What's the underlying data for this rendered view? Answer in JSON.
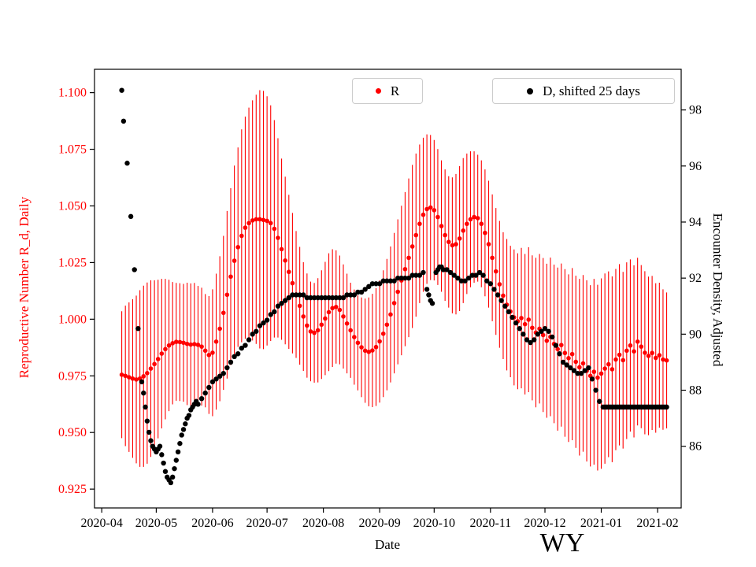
{
  "figure": {
    "title": "WY",
    "xlabel": "Date",
    "ylabel_left": "Reproductive Number R_d, Daily",
    "ylabel_right": "Encounter Density, Adjusted",
    "colors": {
      "r_series": "#ff0000",
      "d_series": "#000000",
      "axis": "#000000",
      "legend_border": "#cccccc"
    }
  },
  "chart_data": {
    "type": "scatter",
    "title": "WY",
    "xlabel": "Date",
    "ylabel_left": "Reproductive Number R_d, Daily",
    "ylabel_right": "Encounter Density, Adjusted",
    "x_unit": "days since 2020-04-01",
    "xlim": [
      -4,
      319
    ],
    "ylim_left": [
      0.9167,
      1.1103
    ],
    "ylim_right": [
      83.8,
      99.45
    ],
    "grid": false,
    "legend_position": "top",
    "x_ticks": {
      "labels": [
        "2020-04",
        "2020-05",
        "2020-06",
        "2020-07",
        "2020-08",
        "2020-09",
        "2020-10",
        "2020-11",
        "2020-12",
        "2021-01",
        "2021-02"
      ],
      "days": [
        0,
        30,
        61,
        91,
        122,
        153,
        183,
        214,
        244,
        275,
        306
      ]
    },
    "y_ticks_left": [
      0.925,
      0.95,
      0.975,
      1.0,
      1.025,
      1.05,
      1.075,
      1.1
    ],
    "y_ticks_right": [
      86,
      88,
      90,
      92,
      94,
      96,
      98
    ],
    "series": [
      {
        "name": "R",
        "axis": "left",
        "color": "#ff0000",
        "marker": "circle",
        "has_error_bars": true,
        "days": [
          11,
          13,
          15,
          17,
          19,
          21,
          23,
          25,
          27,
          29,
          31,
          33,
          35,
          37,
          39,
          41,
          43,
          45,
          47,
          49,
          51,
          53,
          55,
          57,
          59,
          61,
          63,
          65,
          67,
          69,
          71,
          73,
          75,
          77,
          79,
          81,
          83,
          85,
          87,
          89,
          91,
          93,
          95,
          97,
          99,
          101,
          103,
          105,
          107,
          109,
          111,
          113,
          115,
          117,
          119,
          121,
          123,
          125,
          127,
          129,
          131,
          133,
          135,
          137,
          139,
          141,
          143,
          145,
          147,
          149,
          151,
          153,
          155,
          157,
          159,
          161,
          163,
          165,
          167,
          169,
          171,
          173,
          175,
          177,
          179,
          181,
          183,
          185,
          187,
          189,
          191,
          193,
          195,
          197,
          199,
          201,
          203,
          205,
          207,
          209,
          211,
          213,
          215,
          217,
          219,
          221,
          223,
          225,
          227,
          229,
          231,
          233,
          235,
          237,
          239,
          241,
          243,
          245,
          247,
          249,
          251,
          253,
          255,
          257,
          259,
          261,
          263,
          265,
          267,
          269,
          271,
          273,
          275,
          277,
          279,
          281,
          283,
          285,
          287,
          289,
          291,
          293,
          295,
          297,
          299,
          301,
          303,
          305,
          307,
          309,
          311
        ],
        "values": [
          0.9755,
          0.975,
          0.9744,
          0.9738,
          0.9734,
          0.9738,
          0.9748,
          0.9762,
          0.9782,
          0.9802,
          0.9824,
          0.9848,
          0.9868,
          0.9884,
          0.9894,
          0.99,
          0.9899,
          0.9896,
          0.9891,
          0.9888,
          0.989,
          0.9887,
          0.9879,
          0.9861,
          0.9842,
          0.9852,
          0.9901,
          0.9958,
          1.0028,
          1.0108,
          1.0188,
          1.0258,
          1.0318,
          1.0368,
          1.0404,
          1.0424,
          1.0436,
          1.0441,
          1.0441,
          1.0438,
          1.0434,
          1.0424,
          1.0399,
          1.0359,
          1.0309,
          1.0259,
          1.0209,
          1.0159,
          1.0109,
          1.0059,
          1.0012,
          0.9972,
          0.9946,
          0.994,
          0.9951,
          0.9976,
          1.0003,
          1.0031,
          1.0049,
          1.0054,
          1.0041,
          1.0012,
          0.9981,
          0.9951,
          0.9921,
          0.9896,
          0.9876,
          0.9861,
          0.9856,
          0.9862,
          0.9877,
          0.9902,
          0.9936,
          0.9976,
          1.0021,
          1.0071,
          1.0121,
          1.0171,
          1.0221,
          1.0271,
          1.0321,
          1.0371,
          1.0421,
          1.0461,
          1.0486,
          1.0493,
          1.0481,
          1.0451,
          1.0411,
          1.0371,
          1.0341,
          1.0326,
          1.0331,
          1.0356,
          1.0391,
          1.0421,
          1.0441,
          1.0451,
          1.0446,
          1.0421,
          1.0381,
          1.0331,
          1.0271,
          1.0211,
          1.0154,
          1.0104,
          1.0064,
          1.0034,
          1.0008,
          0.9991,
          1.0005,
          0.9978,
          0.9998,
          0.9962,
          0.9941,
          0.9958,
          0.993,
          0.9905,
          0.9922,
          0.9891,
          0.9868,
          0.9886,
          0.9851,
          0.9828,
          0.9846,
          0.9812,
          0.9788,
          0.9805,
          0.9772,
          0.975,
          0.9768,
          0.9742,
          0.976,
          0.9782,
          0.9801,
          0.9779,
          0.9822,
          0.9843,
          0.9819,
          0.9861,
          0.9884,
          0.9858,
          0.9901,
          0.9879,
          0.9852,
          0.9838,
          0.9851,
          0.9829,
          0.9841,
          0.9822,
          0.9818
        ],
        "errors": [
          0.028,
          0.031,
          0.033,
          0.035,
          0.037,
          0.039,
          0.04,
          0.04,
          0.039,
          0.037,
          0.035,
          0.033,
          0.031,
          0.029,
          0.027,
          0.026,
          0.026,
          0.026,
          0.027,
          0.027,
          0.027,
          0.026,
          0.026,
          0.025,
          0.026,
          0.028,
          0.03,
          0.032,
          0.034,
          0.037,
          0.039,
          0.042,
          0.044,
          0.047,
          0.049,
          0.051,
          0.053,
          0.055,
          0.057,
          0.057,
          0.055,
          0.052,
          0.048,
          0.044,
          0.04,
          0.037,
          0.034,
          0.031,
          0.028,
          0.026,
          0.024,
          0.023,
          0.022,
          0.022,
          0.023,
          0.024,
          0.025,
          0.026,
          0.026,
          0.025,
          0.024,
          0.023,
          0.022,
          0.021,
          0.021,
          0.021,
          0.022,
          0.023,
          0.024,
          0.025,
          0.026,
          0.027,
          0.028,
          0.029,
          0.03,
          0.031,
          0.032,
          0.033,
          0.034,
          0.035,
          0.036,
          0.036,
          0.035,
          0.034,
          0.033,
          0.032,
          0.031,
          0.03,
          0.029,
          0.029,
          0.029,
          0.03,
          0.031,
          0.032,
          0.032,
          0.031,
          0.03,
          0.029,
          0.028,
          0.028,
          0.028,
          0.028,
          0.028,
          0.028,
          0.028,
          0.028,
          0.029,
          0.029,
          0.03,
          0.03,
          0.031,
          0.031,
          0.032,
          0.032,
          0.033,
          0.033,
          0.034,
          0.034,
          0.035,
          0.035,
          0.036,
          0.036,
          0.037,
          0.037,
          0.038,
          0.038,
          0.039,
          0.039,
          0.04,
          0.04,
          0.041,
          0.041,
          0.042,
          0.042,
          0.041,
          0.041,
          0.04,
          0.04,
          0.039,
          0.039,
          0.038,
          0.038,
          0.037,
          0.036,
          0.036,
          0.035,
          0.034,
          0.033,
          0.032,
          0.031,
          0.03
        ]
      },
      {
        "name": "D, shifted 25 days",
        "axis": "right",
        "color": "#000000",
        "marker": "circle",
        "has_error_bars": false,
        "days": [
          11,
          12,
          14,
          16,
          18,
          20,
          22,
          23,
          24,
          25,
          26,
          27,
          28,
          29,
          30,
          31,
          32,
          33,
          34,
          35,
          36,
          37,
          38,
          39,
          40,
          41,
          42,
          43,
          44,
          45,
          46,
          47,
          48,
          49,
          50,
          51,
          52,
          53,
          55,
          57,
          59,
          61,
          63,
          65,
          67,
          69,
          71,
          73,
          75,
          77,
          79,
          81,
          83,
          85,
          87,
          89,
          91,
          93,
          95,
          97,
          99,
          101,
          103,
          105,
          107,
          109,
          111,
          113,
          115,
          117,
          119,
          121,
          123,
          125,
          127,
          129,
          131,
          133,
          135,
          137,
          139,
          141,
          143,
          145,
          147,
          149,
          151,
          153,
          155,
          157,
          159,
          161,
          163,
          165,
          167,
          169,
          171,
          173,
          175,
          177,
          179,
          180,
          181,
          182,
          184,
          185,
          186,
          187,
          188,
          190,
          192,
          194,
          196,
          198,
          200,
          202,
          204,
          206,
          208,
          210,
          212,
          214,
          216,
          218,
          220,
          222,
          224,
          226,
          228,
          230,
          232,
          234,
          236,
          238,
          240,
          242,
          244,
          246,
          248,
          250,
          252,
          254,
          256,
          258,
          260,
          262,
          264,
          266,
          268,
          270,
          272,
          274,
          276,
          277,
          278,
          279,
          280,
          281,
          282,
          283,
          284,
          285,
          286,
          287,
          288,
          289,
          290,
          291,
          292,
          293,
          294,
          295,
          296,
          297,
          298,
          299,
          300,
          301,
          302,
          303,
          304,
          305,
          306,
          307,
          308,
          309,
          310,
          311
        ],
        "values": [
          98.7,
          97.6,
          96.1,
          94.2,
          92.3,
          90.2,
          88.3,
          87.9,
          87.4,
          86.9,
          86.5,
          86.2,
          86.0,
          85.9,
          85.8,
          85.9,
          86.0,
          85.7,
          85.4,
          85.1,
          84.9,
          84.8,
          84.7,
          84.9,
          85.2,
          85.5,
          85.8,
          86.1,
          86.4,
          86.6,
          86.8,
          87.0,
          87.1,
          87.3,
          87.4,
          87.5,
          87.6,
          87.5,
          87.7,
          87.9,
          88.1,
          88.3,
          88.4,
          88.5,
          88.6,
          88.8,
          89.0,
          89.2,
          89.3,
          89.5,
          89.6,
          89.8,
          90.0,
          90.1,
          90.3,
          90.4,
          90.5,
          90.7,
          90.8,
          91.0,
          91.1,
          91.2,
          91.3,
          91.4,
          91.4,
          91.4,
          91.4,
          91.3,
          91.3,
          91.3,
          91.3,
          91.3,
          91.3,
          91.3,
          91.3,
          91.3,
          91.3,
          91.3,
          91.4,
          91.4,
          91.4,
          91.5,
          91.5,
          91.6,
          91.7,
          91.8,
          91.8,
          91.8,
          91.9,
          91.9,
          91.9,
          91.9,
          92.0,
          92.0,
          92.0,
          92.0,
          92.1,
          92.1,
          92.1,
          92.2,
          91.6,
          91.4,
          91.2,
          91.1,
          92.2,
          92.3,
          92.4,
          92.4,
          92.3,
          92.3,
          92.2,
          92.1,
          92.0,
          91.9,
          91.9,
          92.0,
          92.1,
          92.1,
          92.2,
          92.1,
          91.9,
          91.8,
          91.6,
          91.4,
          91.2,
          91.0,
          90.8,
          90.6,
          90.4,
          90.2,
          90.0,
          89.8,
          89.7,
          89.8,
          90.0,
          90.1,
          90.2,
          90.1,
          89.9,
          89.6,
          89.3,
          89.0,
          88.9,
          88.8,
          88.7,
          88.6,
          88.6,
          88.7,
          88.8,
          88.4,
          88.0,
          87.6,
          87.4,
          87.4,
          87.4,
          87.4,
          87.4,
          87.4,
          87.4,
          87.4,
          87.4,
          87.4,
          87.4,
          87.4,
          87.4,
          87.4,
          87.4,
          87.4,
          87.4,
          87.4,
          87.4,
          87.4,
          87.4,
          87.4,
          87.4,
          87.4,
          87.4,
          87.4,
          87.4,
          87.4,
          87.4,
          87.4,
          87.4,
          87.4,
          87.4,
          87.4,
          87.4,
          87.4
        ]
      }
    ]
  }
}
